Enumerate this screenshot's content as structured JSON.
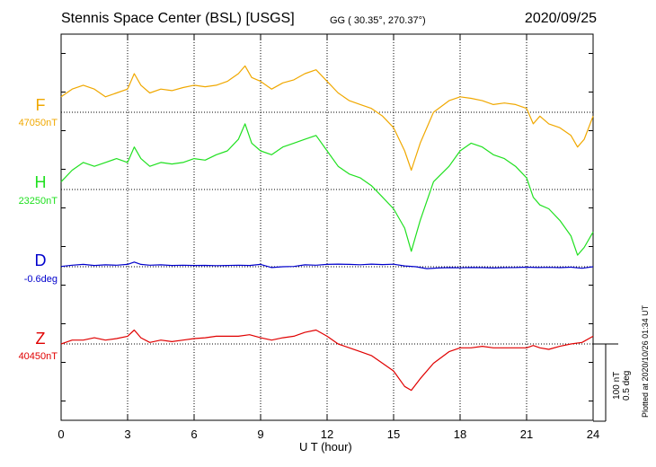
{
  "header": {
    "title": "Stennis Space Center (BSL)  [USGS]",
    "coords": "GG ( 30.35°, 270.37°)",
    "date": "2020/09/25"
  },
  "footer": {
    "plotted": "Plotted at 2020/10/26 01:34 UT",
    "scale_nt": "100 nT",
    "scale_deg": "0.5 deg"
  },
  "chart_data": {
    "type": "line",
    "xlabel": "U T (hour)",
    "xlim": [
      0,
      24
    ],
    "xticks": [
      "0",
      "3",
      "6",
      "9",
      "12",
      "15",
      "18",
      "21",
      "24"
    ],
    "grid": true,
    "series": [
      {
        "name": "F",
        "baseline_label": "47050nT",
        "color": "#f0a800",
        "x": [
          0,
          0.5,
          1,
          1.5,
          2,
          2.5,
          3,
          3.3,
          3.6,
          4,
          4.5,
          5,
          5.5,
          6,
          6.5,
          7,
          7.5,
          8,
          8.3,
          8.6,
          9,
          9.5,
          10,
          10.5,
          11,
          11.5,
          12,
          12.5,
          13,
          13.5,
          14,
          14.5,
          15,
          15.5,
          15.8,
          16.2,
          16.8,
          17.5,
          18,
          18.5,
          19,
          19.5,
          20,
          20.5,
          21,
          21.3,
          21.6,
          22,
          22.5,
          23,
          23.3,
          23.6,
          24
        ],
        "y": [
          47070,
          47080,
          47085,
          47080,
          47070,
          47075,
          47080,
          47100,
          47085,
          47075,
          47080,
          47078,
          47082,
          47085,
          47083,
          47085,
          47090,
          47100,
          47110,
          47095,
          47090,
          47080,
          47088,
          47092,
          47100,
          47105,
          47090,
          47075,
          47065,
          47060,
          47055,
          47045,
          47030,
          47000,
          46975,
          47010,
          47050,
          47065,
          47070,
          47068,
          47065,
          47060,
          47062,
          47060,
          47055,
          47035,
          47045,
          47035,
          47030,
          47020,
          47005,
          47015,
          47045
        ]
      },
      {
        "name": "H",
        "baseline_label": "23250nT",
        "color": "#20e020",
        "x": [
          0,
          0.5,
          1,
          1.5,
          2,
          2.5,
          3,
          3.3,
          3.6,
          4,
          4.5,
          5,
          5.5,
          6,
          6.5,
          7,
          7.5,
          8,
          8.3,
          8.6,
          9,
          9.5,
          10,
          10.5,
          11,
          11.5,
          12,
          12.5,
          13,
          13.5,
          14,
          14.5,
          15,
          15.5,
          15.8,
          16.2,
          16.8,
          17.5,
          18,
          18.5,
          19,
          19.5,
          20,
          20.5,
          21,
          21.3,
          21.6,
          22,
          22.5,
          23,
          23.3,
          23.6,
          24
        ],
        "y": [
          23260,
          23275,
          23285,
          23280,
          23285,
          23290,
          23285,
          23305,
          23290,
          23280,
          23285,
          23283,
          23285,
          23290,
          23288,
          23295,
          23300,
          23315,
          23335,
          23310,
          23300,
          23295,
          23305,
          23310,
          23315,
          23320,
          23300,
          23280,
          23270,
          23265,
          23255,
          23240,
          23225,
          23200,
          23170,
          23210,
          23260,
          23280,
          23300,
          23310,
          23305,
          23295,
          23290,
          23280,
          23265,
          23240,
          23230,
          23225,
          23210,
          23190,
          23165,
          23175,
          23195
        ]
      },
      {
        "name": "D",
        "baseline_label": "-0.6deg",
        "color": "#0000cc",
        "x": [
          0,
          0.5,
          1,
          1.5,
          2,
          2.5,
          3,
          3.3,
          3.6,
          4,
          4.5,
          5,
          5.5,
          6,
          6.5,
          7,
          7.5,
          8,
          8.5,
          9,
          9.5,
          10,
          10.5,
          11,
          11.5,
          12,
          12.5,
          13,
          13.5,
          14,
          14.5,
          15,
          15.5,
          16,
          16.5,
          17,
          17.5,
          18,
          18.5,
          19,
          19.5,
          20,
          20.5,
          21,
          21.5,
          22,
          22.5,
          23,
          23.5,
          24
        ],
        "y": [
          -0.598,
          -0.59,
          -0.585,
          -0.592,
          -0.588,
          -0.59,
          -0.585,
          -0.57,
          -0.585,
          -0.59,
          -0.588,
          -0.592,
          -0.59,
          -0.592,
          -0.591,
          -0.593,
          -0.592,
          -0.59,
          -0.592,
          -0.585,
          -0.605,
          -0.6,
          -0.598,
          -0.588,
          -0.59,
          -0.585,
          -0.583,
          -0.585,
          -0.587,
          -0.583,
          -0.586,
          -0.584,
          -0.595,
          -0.6,
          -0.612,
          -0.608,
          -0.606,
          -0.607,
          -0.605,
          -0.606,
          -0.608,
          -0.606,
          -0.605,
          -0.603,
          -0.605,
          -0.604,
          -0.606,
          -0.603,
          -0.61,
          -0.6
        ]
      },
      {
        "name": "Z",
        "baseline_label": "40450nT",
        "color": "#e00000",
        "x": [
          0,
          0.5,
          1,
          1.5,
          2,
          2.5,
          3,
          3.3,
          3.6,
          4,
          4.5,
          5,
          5.5,
          6,
          6.5,
          7,
          7.5,
          8,
          8.5,
          9,
          9.5,
          10,
          10.5,
          11,
          11.5,
          12,
          12.5,
          13,
          13.5,
          14,
          14.5,
          15,
          15.5,
          15.8,
          16.2,
          16.8,
          17.5,
          18,
          18.5,
          19,
          19.5,
          20,
          20.5,
          21,
          21.3,
          21.6,
          22,
          22.5,
          23,
          23.5,
          24
        ],
        "y": [
          40450,
          40455,
          40455,
          40458,
          40455,
          40457,
          40460,
          40468,
          40458,
          40452,
          40455,
          40453,
          40455,
          40457,
          40458,
          40460,
          40460,
          40460,
          40462,
          40458,
          40455,
          40458,
          40460,
          40465,
          40468,
          40460,
          40450,
          40445,
          40440,
          40435,
          40425,
          40415,
          40395,
          40390,
          40405,
          40425,
          40440,
          40445,
          40445,
          40447,
          40445,
          40445,
          40445,
          40445,
          40448,
          40445,
          40443,
          40447,
          40450,
          40452,
          40460
        ]
      }
    ]
  }
}
